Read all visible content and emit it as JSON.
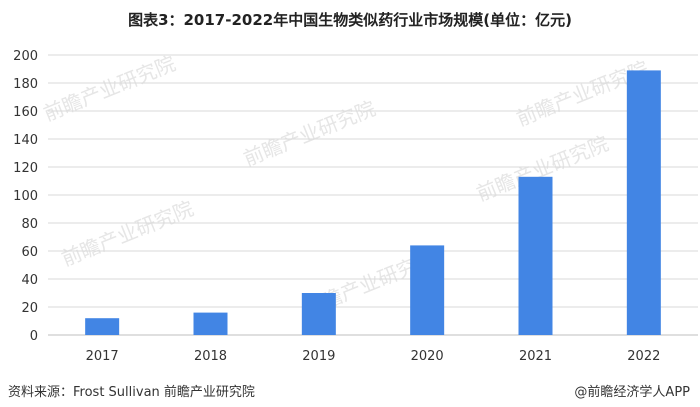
{
  "title": "图表3：2017-2022年中国生物类似药行业市场规模(单位：亿元)",
  "source": "资料来源：Frost Sullivan 前瞻产业研究院",
  "brand": "@前瞻经济学人APP",
  "watermark": "前瞻产业研究院",
  "colors": {
    "bar": "#4285e4",
    "grid": "#d9d9d9",
    "axis": "#bfbfbf",
    "text": "#333333"
  },
  "chart_data": {
    "type": "bar",
    "categories": [
      "2017",
      "2018",
      "2019",
      "2020",
      "2021",
      "2022"
    ],
    "values": [
      12,
      16,
      30,
      64,
      113,
      189
    ],
    "ylim": [
      0,
      200
    ],
    "yticks": [
      0,
      20,
      40,
      60,
      80,
      100,
      120,
      140,
      160,
      180,
      200
    ],
    "grid": true,
    "legend": "none"
  }
}
